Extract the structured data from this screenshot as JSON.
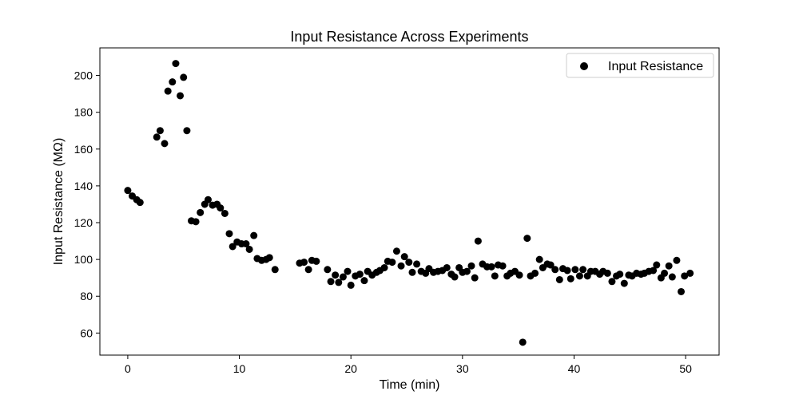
{
  "chart_data": {
    "type": "scatter",
    "title": "Input Resistance Across Experiments",
    "xlabel": "Time (min)",
    "ylabel": "Input Resistance (MΩ)",
    "xlim": [
      -2.5,
      53
    ],
    "ylim": [
      48,
      215
    ],
    "xticks": [
      0,
      10,
      20,
      30,
      40,
      50
    ],
    "yticks": [
      60,
      80,
      100,
      120,
      140,
      160,
      180,
      200
    ],
    "grid": false,
    "legend": "top-right",
    "color": "#000000",
    "series": [
      {
        "name": "Input Resistance",
        "points": [
          [
            0.0,
            137.5
          ],
          [
            0.4,
            134.5
          ],
          [
            0.8,
            132.5
          ],
          [
            1.1,
            131.0
          ],
          [
            2.6,
            166.5
          ],
          [
            2.9,
            170.0
          ],
          [
            3.3,
            163.0
          ],
          [
            3.6,
            191.5
          ],
          [
            4.0,
            196.5
          ],
          [
            4.3,
            206.5
          ],
          [
            4.7,
            189.0
          ],
          [
            5.0,
            199.0
          ],
          [
            5.3,
            170.0
          ],
          [
            5.7,
            121.0
          ],
          [
            6.1,
            120.5
          ],
          [
            6.5,
            125.5
          ],
          [
            6.9,
            130.0
          ],
          [
            7.2,
            132.5
          ],
          [
            7.6,
            129.5
          ],
          [
            8.0,
            130.0
          ],
          [
            8.3,
            128.0
          ],
          [
            8.7,
            125.0
          ],
          [
            9.1,
            114.0
          ],
          [
            9.4,
            107.0
          ],
          [
            9.8,
            109.5
          ],
          [
            10.2,
            108.5
          ],
          [
            10.6,
            108.5
          ],
          [
            10.9,
            105.5
          ],
          [
            11.3,
            113.0
          ],
          [
            11.6,
            100.5
          ],
          [
            12.0,
            99.5
          ],
          [
            12.4,
            100.0
          ],
          [
            12.7,
            101.0
          ],
          [
            13.2,
            94.5
          ],
          [
            15.4,
            98.0
          ],
          [
            15.8,
            98.5
          ],
          [
            16.2,
            94.5
          ],
          [
            16.5,
            99.5
          ],
          [
            16.9,
            99.0
          ],
          [
            17.9,
            94.5
          ],
          [
            18.2,
            88.0
          ],
          [
            18.6,
            91.5
          ],
          [
            18.9,
            87.5
          ],
          [
            19.3,
            90.5
          ],
          [
            19.7,
            93.5
          ],
          [
            20.0,
            86.0
          ],
          [
            20.4,
            91.0
          ],
          [
            20.8,
            92.0
          ],
          [
            21.2,
            88.5
          ],
          [
            21.5,
            93.5
          ],
          [
            21.9,
            91.5
          ],
          [
            22.3,
            93.0
          ],
          [
            22.6,
            94.0
          ],
          [
            23.0,
            95.5
          ],
          [
            23.3,
            99.0
          ],
          [
            23.7,
            98.5
          ],
          [
            24.1,
            104.5
          ],
          [
            24.5,
            96.5
          ],
          [
            24.8,
            101.5
          ],
          [
            25.2,
            98.5
          ],
          [
            25.5,
            93.0
          ],
          [
            25.9,
            97.5
          ],
          [
            26.3,
            93.5
          ],
          [
            26.7,
            92.5
          ],
          [
            27.0,
            95.0
          ],
          [
            27.4,
            93.0
          ],
          [
            27.8,
            93.5
          ],
          [
            28.2,
            94.0
          ],
          [
            28.6,
            95.5
          ],
          [
            29.0,
            92.0
          ],
          [
            29.3,
            90.5
          ],
          [
            29.7,
            95.5
          ],
          [
            30.0,
            93.0
          ],
          [
            30.4,
            93.5
          ],
          [
            30.8,
            96.5
          ],
          [
            31.1,
            90.0
          ],
          [
            31.4,
            110.0
          ],
          [
            31.8,
            97.5
          ],
          [
            32.2,
            96.0
          ],
          [
            32.6,
            96.0
          ],
          [
            32.9,
            91.0
          ],
          [
            33.2,
            97.0
          ],
          [
            33.6,
            96.5
          ],
          [
            34.0,
            91.0
          ],
          [
            34.3,
            92.5
          ],
          [
            34.7,
            93.5
          ],
          [
            35.1,
            91.5
          ],
          [
            35.4,
            55.0
          ],
          [
            35.8,
            111.5
          ],
          [
            36.1,
            91.0
          ],
          [
            36.5,
            92.5
          ],
          [
            36.9,
            100.0
          ],
          [
            37.2,
            95.5
          ],
          [
            37.6,
            97.5
          ],
          [
            37.9,
            97.0
          ],
          [
            38.3,
            94.5
          ],
          [
            38.7,
            89.0
          ],
          [
            39.0,
            95.0
          ],
          [
            39.4,
            94.0
          ],
          [
            39.7,
            89.5
          ],
          [
            40.1,
            94.5
          ],
          [
            40.5,
            91.0
          ],
          [
            40.8,
            94.5
          ],
          [
            41.2,
            91.0
          ],
          [
            41.5,
            93.5
          ],
          [
            41.9,
            93.5
          ],
          [
            42.3,
            92.0
          ],
          [
            42.6,
            93.5
          ],
          [
            43.0,
            92.5
          ],
          [
            43.4,
            88.0
          ],
          [
            43.8,
            91.0
          ],
          [
            44.1,
            92.0
          ],
          [
            44.5,
            87.0
          ],
          [
            44.9,
            91.5
          ],
          [
            45.2,
            91.0
          ],
          [
            45.6,
            92.5
          ],
          [
            46.0,
            92.0
          ],
          [
            46.3,
            92.5
          ],
          [
            46.7,
            93.5
          ],
          [
            47.1,
            94.0
          ],
          [
            47.4,
            97.0
          ],
          [
            47.8,
            90.0
          ],
          [
            48.1,
            92.5
          ],
          [
            48.5,
            96.5
          ],
          [
            48.8,
            90.5
          ],
          [
            49.2,
            99.5
          ],
          [
            49.6,
            82.5
          ],
          [
            49.9,
            91.0
          ],
          [
            50.4,
            92.5
          ]
        ]
      }
    ]
  }
}
